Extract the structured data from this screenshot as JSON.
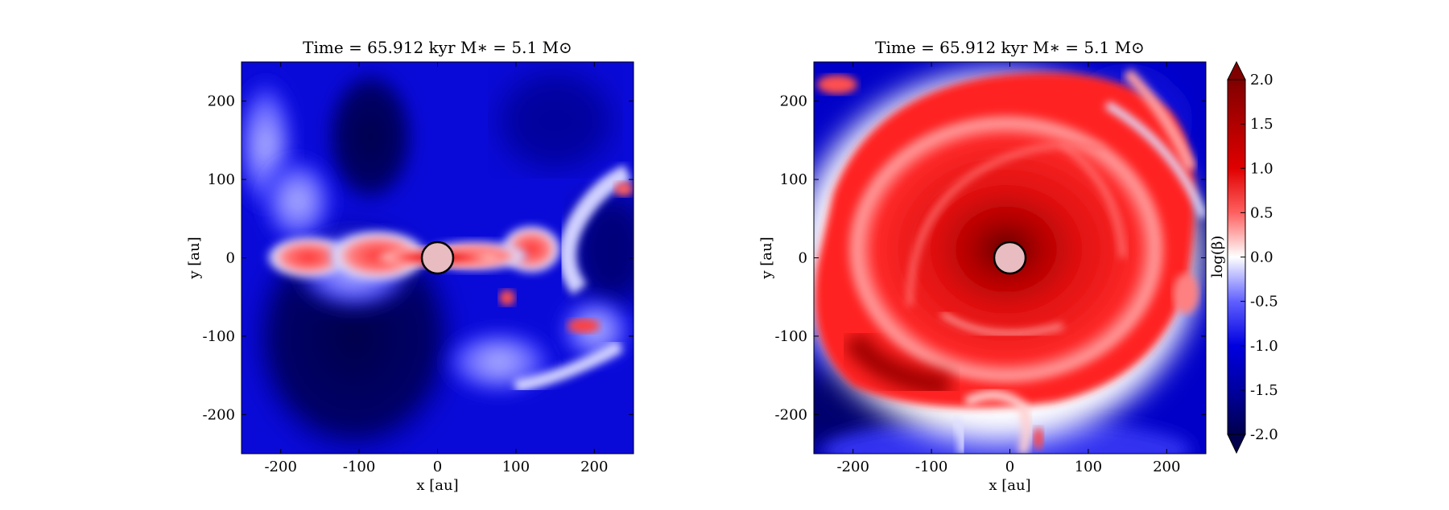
{
  "chart_data": [
    {
      "type": "heatmap",
      "title": "Time = 65.912 kyr    M∗ = 5.1 M⊙",
      "xlabel": "x [au]",
      "ylabel": "y [au]",
      "xlim": [
        -250,
        250
      ],
      "ylim": [
        -250,
        250
      ],
      "xticks": [
        -200,
        -100,
        0,
        100,
        200
      ],
      "yticks": [
        200,
        100,
        0,
        -100,
        -200
      ],
      "xtick_labels": [
        "-200",
        "-100",
        "0",
        "100",
        "200"
      ],
      "ytick_labels": [
        "200",
        "100",
        "0",
        "-100",
        "-200"
      ],
      "star": {
        "x": 0,
        "y": 0,
        "radius": 20
      },
      "field": "log(β)"
    },
    {
      "type": "heatmap",
      "title": "Time = 65.912 kyr    M∗ = 5.1 M⊙",
      "xlabel": "x [au]",
      "ylabel": "y [au]",
      "xlim": [
        -250,
        250
      ],
      "ylim": [
        -250,
        250
      ],
      "xticks": [
        -200,
        -100,
        0,
        100,
        200
      ],
      "yticks": [
        200,
        100,
        0,
        -100,
        -200
      ],
      "xtick_labels": [
        "-200",
        "-100",
        "0",
        "100",
        "200"
      ],
      "ytick_labels": [
        "200",
        "100",
        "0",
        "-100",
        "-200"
      ],
      "star": {
        "x": 0,
        "y": 0,
        "radius": 20
      },
      "field": "log(β)"
    }
  ],
  "colorbar": {
    "label": "log(β)",
    "min": -2.0,
    "max": 2.0,
    "extend": "both",
    "ticks": [
      2.0,
      1.5,
      1.0,
      0.5,
      0.0,
      -0.5,
      -1.0,
      -1.5,
      -2.0
    ],
    "tick_labels": [
      "2.0",
      "1.5",
      "1.0",
      "0.5",
      "0.0",
      "-0.5",
      "-1.0",
      "-1.5",
      "-2.0"
    ],
    "colormap": "seismic",
    "colors": {
      "low": "#00004c",
      "mid": "#ffffff",
      "high": "#800000"
    }
  }
}
